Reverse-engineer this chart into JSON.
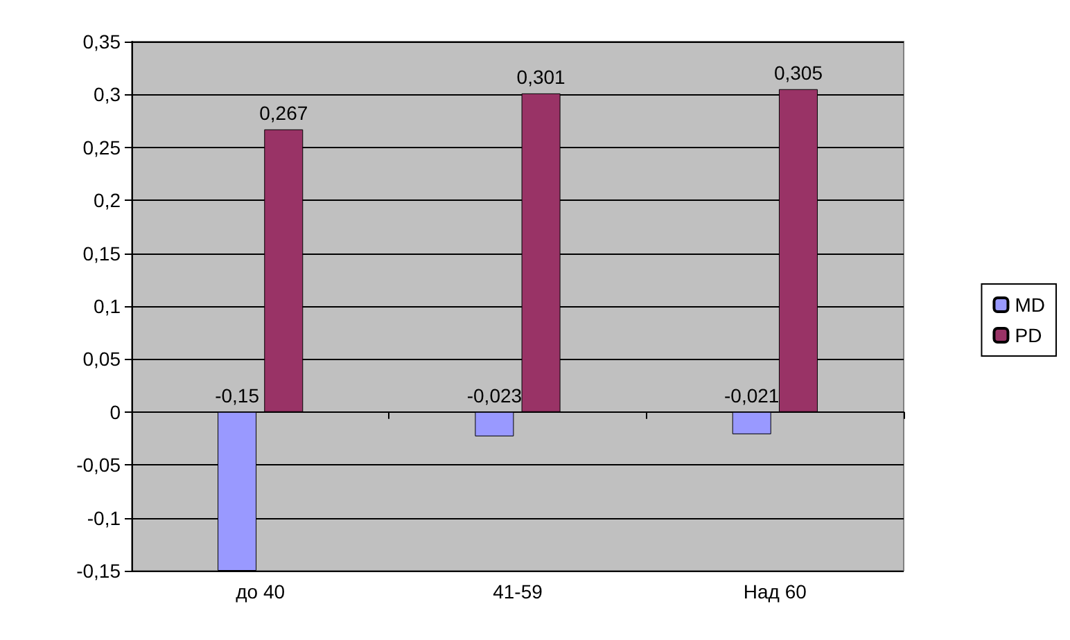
{
  "chart_data": {
    "type": "bar",
    "categories": [
      "до 40",
      "41-59",
      "Над 60"
    ],
    "series": [
      {
        "name": "MD",
        "color": "#9999ff",
        "values": [
          -0.15,
          -0.023,
          -0.021
        ],
        "value_labels": [
          "-0,15",
          "-0,023",
          "-0,021"
        ]
      },
      {
        "name": "PD",
        "color": "#993366",
        "values": [
          0.267,
          0.301,
          0.305
        ],
        "value_labels": [
          "0,267",
          "0,301",
          "0,305"
        ]
      }
    ],
    "ylim": [
      -0.15,
      0.35
    ],
    "yticks": [
      {
        "value": -0.15,
        "label": "-0,15"
      },
      {
        "value": -0.1,
        "label": "-0,1"
      },
      {
        "value": -0.05,
        "label": "-0,05"
      },
      {
        "value": 0,
        "label": "0"
      },
      {
        "value": 0.05,
        "label": "0,05"
      },
      {
        "value": 0.1,
        "label": "0,1"
      },
      {
        "value": 0.15,
        "label": "0,15"
      },
      {
        "value": 0.2,
        "label": "0,2"
      },
      {
        "value": 0.25,
        "label": "0,25"
      },
      {
        "value": 0.3,
        "label": "0,3"
      },
      {
        "value": 0.35,
        "label": "0,35"
      }
    ],
    "grid": "y",
    "legend": "right"
  }
}
